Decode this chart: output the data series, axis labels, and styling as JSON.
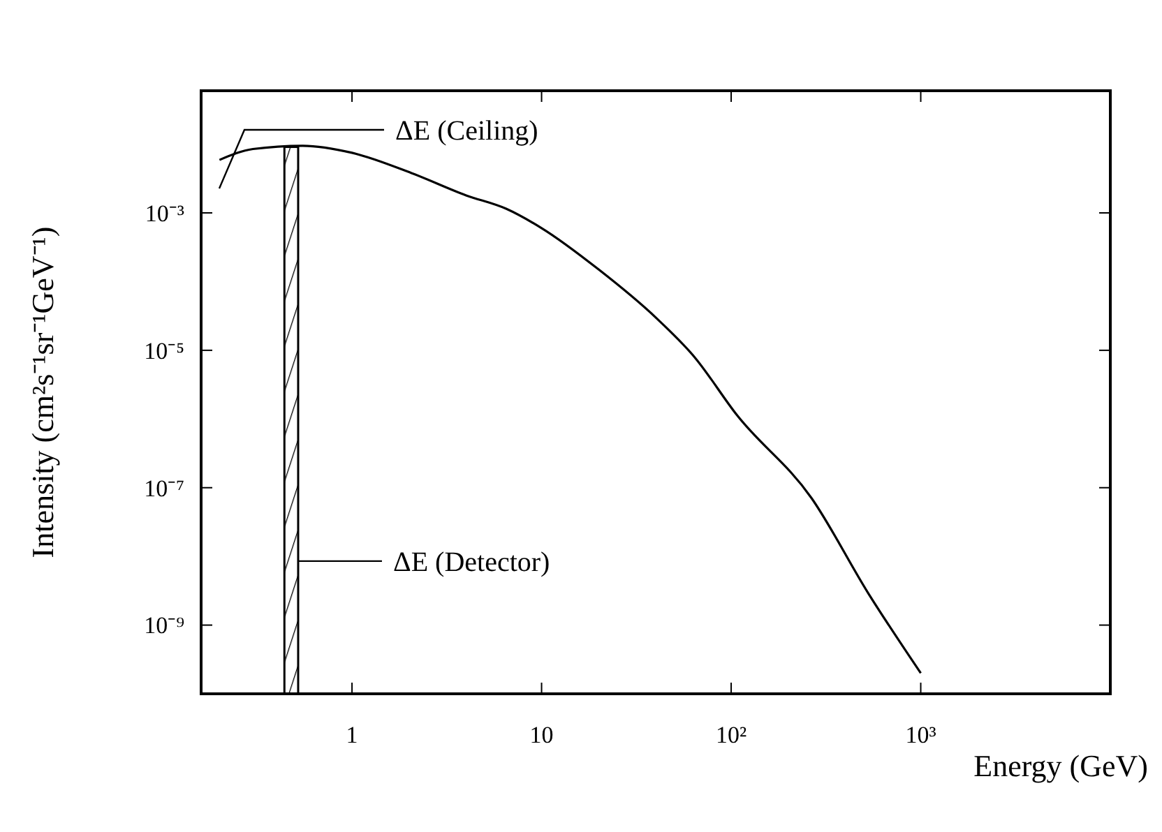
{
  "chart_data": {
    "type": "line",
    "xlabel": "Energy (GeV)",
    "ylabel": "Intensity (cm²s⁻¹sr⁻¹GeV⁻¹)",
    "log": "xy",
    "xlim": [
      0.16,
      10000
    ],
    "ylim": [
      1e-10,
      0.06
    ],
    "xticks": [
      1,
      10,
      {
        "value": 100,
        "label": "10²"
      },
      {
        "value": 1000,
        "label": "10³"
      }
    ],
    "yticks": [
      {
        "value": 0.001,
        "label": "10⁻³"
      },
      {
        "value": 1e-05,
        "label": "10⁻⁵"
      },
      {
        "value": 1e-07,
        "label": "10⁻⁷"
      },
      {
        "value": 1e-09,
        "label": "10⁻⁹"
      }
    ],
    "series": [
      {
        "color": "#000000",
        "x": [
          0.2,
          0.3,
          0.55,
          1,
          2.06,
          4,
          6.5,
          10,
          20,
          40,
          64,
          107,
          266,
          529,
          1000
        ],
        "values": [
          0.0059,
          0.0085,
          0.0095,
          0.0075,
          0.0038,
          0.0018,
          0.00115,
          0.0006,
          0.00015,
          3e-05,
          8e-06,
          1.15e-06,
          7e-08,
          2.9e-09,
          2e-10
        ]
      }
    ],
    "bands": [
      {
        "axis": "x",
        "from": 0.44,
        "to": 0.52,
        "label": "ΔE (Detector)"
      }
    ],
    "annotations": [
      "ΔE (Ceiling)"
    ],
    "grid": false,
    "line_style": "solid"
  }
}
